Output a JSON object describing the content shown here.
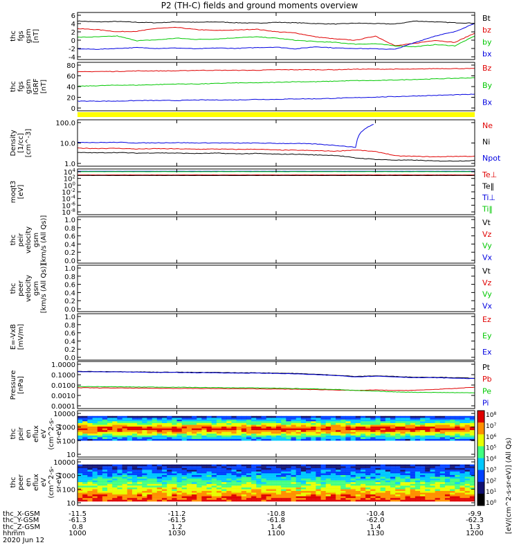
{
  "title": "P2 (TH-C) fields and ground moments overview",
  "date_label": "2020 Jun 12",
  "footer": {
    "row_labels": [
      "thc_X-GSM",
      "thc_Y-GSM",
      "thc_Z-GSM",
      "hhmm"
    ],
    "columns": [
      {
        "x": "-11.5",
        "y": "-61.3",
        "z": "0.8",
        "hhmm": "1000"
      },
      {
        "x": "-11.2",
        "y": "-61.5",
        "z": "1.2",
        "hhmm": "1030"
      },
      {
        "x": "-10.8",
        "y": "-61.8",
        "z": "1.4",
        "hhmm": "1100"
      },
      {
        "x": "-10.4",
        "y": "-62.0",
        "z": "1.4",
        "hhmm": "1130"
      },
      {
        "x": "-9.9",
        "y": "-62.3",
        "z": "1.3",
        "hhmm": "1200"
      }
    ]
  },
  "colors": {
    "black": "#000000",
    "red": "#e00000",
    "green": "#00c800",
    "blue": "#0000e0",
    "yellow": "#ffff00"
  },
  "colorbar_label": "[eV/(cm^2-s-sr-eV)] (All Qs)",
  "colorbar_ticks": [
    "10^8",
    "10^7",
    "10^6",
    "10^5",
    "10^4",
    "10^3",
    "10^2",
    "10^1",
    "10^0"
  ],
  "chart_data": [
    {
      "type": "line",
      "ylabel": [
        "thc",
        "fgs",
        "gsm",
        "[nT]"
      ],
      "ylim": [
        -5,
        6
      ],
      "yticks": [
        "6",
        "4",
        "2",
        "0",
        "-2",
        "-4"
      ],
      "series": [
        {
          "name": "Bt",
          "color": "black",
          "values": [
            4.0,
            3.8,
            3.9,
            3.7,
            3.6,
            3.8,
            3.7,
            3.8,
            3.6,
            3.5,
            3.7,
            3.6,
            3.4,
            3.3,
            3.5,
            3.4,
            3.3,
            4.0,
            3.8,
            3.6,
            3.5
          ]
        },
        {
          "name": "bz",
          "color": "red",
          "values": [
            2.2,
            2.0,
            1.5,
            1.6,
            2.3,
            2.5,
            2.0,
            1.8,
            1.9,
            2.1,
            1.5,
            1.2,
            0.3,
            -0.2,
            -0.5,
            0.5,
            -1.8,
            -1.2,
            -0.5,
            -1.0,
            1.2
          ]
        },
        {
          "name": "by",
          "color": "green",
          "values": [
            0.2,
            0.3,
            0.5,
            -0.6,
            -0.4,
            0.0,
            -0.3,
            -0.2,
            0.1,
            0.3,
            0.0,
            -0.5,
            -0.8,
            -1.0,
            -1.4,
            -1.3,
            -1.8,
            -2.0,
            -1.5,
            -1.8,
            0.5
          ]
        },
        {
          "name": "bx",
          "color": "blue",
          "values": [
            -2.5,
            -2.6,
            -2.4,
            -2.2,
            -2.4,
            -2.3,
            -2.5,
            -2.3,
            -2.4,
            -2.2,
            -2.1,
            -2.5,
            -2.0,
            -2.3,
            -2.4,
            -2.5,
            -2.6,
            -1.0,
            0.5,
            1.5,
            3.5
          ]
        }
      ]
    },
    {
      "type": "line",
      "ylabel": [
        "thc",
        "fgs",
        "gsm",
        "IGRF",
        "[nT]"
      ],
      "ylim": [
        -5,
        80
      ],
      "yticks": [
        "80",
        "60",
        "40",
        "20",
        "0"
      ],
      "series": [
        {
          "name": "Bz",
          "color": "red",
          "values": [
            63,
            64,
            64,
            65,
            65,
            65,
            66,
            66,
            66,
            66,
            67,
            67,
            67,
            67,
            68,
            68,
            68,
            68,
            69,
            69,
            69
          ]
        },
        {
          "name": "By",
          "color": "green",
          "values": [
            38,
            39,
            40,
            40,
            41,
            42,
            42,
            43,
            44,
            44,
            45,
            46,
            46,
            47,
            48,
            48,
            49,
            50,
            51,
            52,
            53
          ]
        },
        {
          "name": "Bx",
          "color": "blue",
          "values": [
            12,
            12,
            12,
            13,
            13,
            13,
            14,
            14,
            14,
            15,
            15,
            16,
            16,
            17,
            18,
            19,
            20,
            21,
            22,
            23,
            24
          ]
        }
      ]
    },
    {
      "type": "line",
      "scale": "log",
      "ylabel": [
        "Density",
        "[1/cc]",
        "[cm^-3]"
      ],
      "ylim": [
        0.4,
        200
      ],
      "yticks": [
        "100.0",
        "10.0",
        "1.0"
      ],
      "series": [
        {
          "name": "Ne",
          "color": "red",
          "values": [
            4.5,
            4.3,
            4.4,
            4.0,
            4.2,
            4.1,
            3.9,
            4.0,
            3.8,
            3.9,
            3.5,
            3.4,
            3.2,
            3.0,
            3.5,
            2.8,
            1.6,
            1.5,
            1.4,
            1.5,
            1.5
          ]
        },
        {
          "name": "Ni",
          "color": "black",
          "values": [
            2.5,
            2.4,
            2.5,
            2.3,
            2.4,
            2.3,
            2.2,
            2.3,
            2.1,
            2.2,
            2.0,
            2.0,
            1.8,
            1.7,
            1.2,
            1.0,
            0.9,
            0.9,
            0.8,
            0.8,
            0.85
          ]
        },
        {
          "name": "Npot",
          "color": "blue",
          "values": [
            10,
            9.5,
            9.8,
            9.0,
            9.2,
            9.4,
            9.0,
            9.1,
            8.8,
            8.9,
            8.5,
            8.4,
            7.8,
            6.5,
            5.0,
            120,
            null,
            null,
            null,
            null,
            null
          ]
        }
      ]
    },
    {
      "type": "line",
      "scale": "log",
      "ylabel": [
        "moqt3",
        "[eV]"
      ],
      "ylim": [
        1e-09,
        100000.0
      ],
      "yticks": [
        "10^4",
        "10^2",
        "10^0",
        "10^-2",
        "10^-4",
        "10^-6",
        "10^-8"
      ],
      "series": [
        {
          "name": "Te⊥",
          "color": "red",
          "values": [
            1500,
            1500,
            1500,
            1500,
            1500,
            1500,
            1500,
            1500,
            1500,
            1500,
            1500,
            1500,
            1500,
            1500,
            1500,
            1500,
            1500,
            1500,
            1500,
            1500,
            1500
          ]
        },
        {
          "name": "Te‖",
          "color": "black",
          "values": [
            1000,
            1000,
            1000,
            1000,
            1000,
            1000,
            1000,
            1000,
            1000,
            1000,
            1000,
            1000,
            1000,
            1000,
            1000,
            1000,
            1000,
            1000,
            1000,
            1000,
            1000
          ]
        },
        {
          "name": "Ti⊥",
          "color": "blue",
          "values": [
            20000,
            20000,
            20000,
            20000,
            20000,
            20000,
            20000,
            20000,
            20000,
            20000,
            20000,
            20000,
            20000,
            20000,
            20000,
            20000,
            20000,
            20000,
            20000,
            20000,
            20000
          ]
        },
        {
          "name": "Ti‖",
          "color": "green",
          "values": [
            15000,
            15000,
            15000,
            15000,
            15000,
            15000,
            15000,
            15000,
            15000,
            15000,
            15000,
            15000,
            15000,
            15000,
            15000,
            15000,
            15000,
            15000,
            15000,
            15000,
            15000
          ]
        }
      ]
    },
    {
      "type": "line",
      "ylabel": [
        "thc",
        "peir",
        "velocity",
        "gsm",
        "[km/s (All Qs)]"
      ],
      "ylim": [
        0,
        1
      ],
      "yticks": [
        "1.0",
        "0.8",
        "0.6",
        "0.4",
        "0.2",
        "0.0"
      ],
      "series": [
        {
          "name": "Vt",
          "color": "black",
          "values": []
        },
        {
          "name": "Vz",
          "color": "red",
          "values": []
        },
        {
          "name": "Vy",
          "color": "green",
          "values": []
        },
        {
          "name": "Vx",
          "color": "blue",
          "values": []
        }
      ]
    },
    {
      "type": "line",
      "ylabel": [
        "thc",
        "peer",
        "velocity",
        "gsm",
        "[km/s (All Qs)]"
      ],
      "ylim": [
        0,
        1
      ],
      "yticks": [
        "1.0",
        "0.8",
        "0.6",
        "0.4",
        "0.2",
        "0.0"
      ],
      "series": [
        {
          "name": "Vt",
          "color": "black",
          "values": []
        },
        {
          "name": "Vz",
          "color": "red",
          "values": []
        },
        {
          "name": "Vy",
          "color": "green",
          "values": []
        },
        {
          "name": "Vx",
          "color": "blue",
          "values": []
        }
      ]
    },
    {
      "type": "line",
      "ylabel": [
        "E=-VxB",
        "[mV/m]"
      ],
      "ylim": [
        0,
        1
      ],
      "yticks": [
        "1.0",
        "0.8",
        "0.6",
        "0.4",
        "0.2",
        "0.0"
      ],
      "series": [
        {
          "name": "Ez",
          "color": "red",
          "values": []
        },
        {
          "name": "Ey",
          "color": "green",
          "values": []
        },
        {
          "name": "Ex",
          "color": "blue",
          "values": []
        }
      ]
    },
    {
      "type": "line",
      "scale": "log",
      "ylabel": [
        "Pressure",
        "[nPa]"
      ],
      "ylim": [
        0.0001,
        1.5
      ],
      "yticks": [
        "1.0000",
        "0.1000",
        "0.0100",
        "0.0010",
        "0.0001"
      ],
      "series": [
        {
          "name": "Pt",
          "color": "black",
          "values": [
            0.2,
            0.19,
            0.19,
            0.18,
            0.17,
            0.17,
            0.16,
            0.16,
            0.15,
            0.15,
            0.14,
            0.13,
            0.11,
            0.09,
            0.07,
            0.08,
            0.07,
            0.06,
            0.06,
            0.055,
            0.05
          ]
        },
        {
          "name": "Pb",
          "color": "red",
          "values": [
            0.007,
            0.0068,
            0.0067,
            0.0065,
            0.0063,
            0.0062,
            0.006,
            0.0059,
            0.0058,
            0.0056,
            0.0054,
            0.0052,
            0.0048,
            0.0045,
            0.004,
            0.0045,
            0.004,
            0.0042,
            0.005,
            0.006,
            0.008
          ]
        },
        {
          "name": "Pe",
          "color": "green",
          "values": [
            0.009,
            0.0088,
            0.0085,
            0.0082,
            0.008,
            0.0078,
            0.0075,
            0.0072,
            0.007,
            0.0068,
            0.0065,
            0.006,
            0.0055,
            0.005,
            0.004,
            0.0035,
            0.003,
            0.0028,
            0.0027,
            0.0026,
            0.0025
          ]
        },
        {
          "name": "Pi",
          "color": "blue",
          "values": [
            0.19,
            0.18,
            0.18,
            0.17,
            0.16,
            0.16,
            0.15,
            0.15,
            0.14,
            0.14,
            0.13,
            0.12,
            0.1,
            0.085,
            0.065,
            0.075,
            0.065,
            0.055,
            0.055,
            0.05,
            0.045
          ]
        }
      ]
    },
    {
      "type": "heatmap",
      "ylabel": [
        "thc",
        "peir",
        "en",
        "eflux",
        "eV",
        "(cm^2-s-",
        "sr-eV)"
      ],
      "ylim": [
        5,
        15000
      ],
      "yticks": [
        "10000",
        "1000",
        "100",
        "10"
      ]
    },
    {
      "type": "heatmap",
      "ylabel": [
        "thc",
        "peer",
        "en",
        "eflux",
        "eV",
        "(cm^2-s-",
        "sr-eV)"
      ],
      "ylim": [
        5,
        15000
      ],
      "yticks": [
        "10000",
        "1000",
        "100",
        "10"
      ]
    }
  ]
}
